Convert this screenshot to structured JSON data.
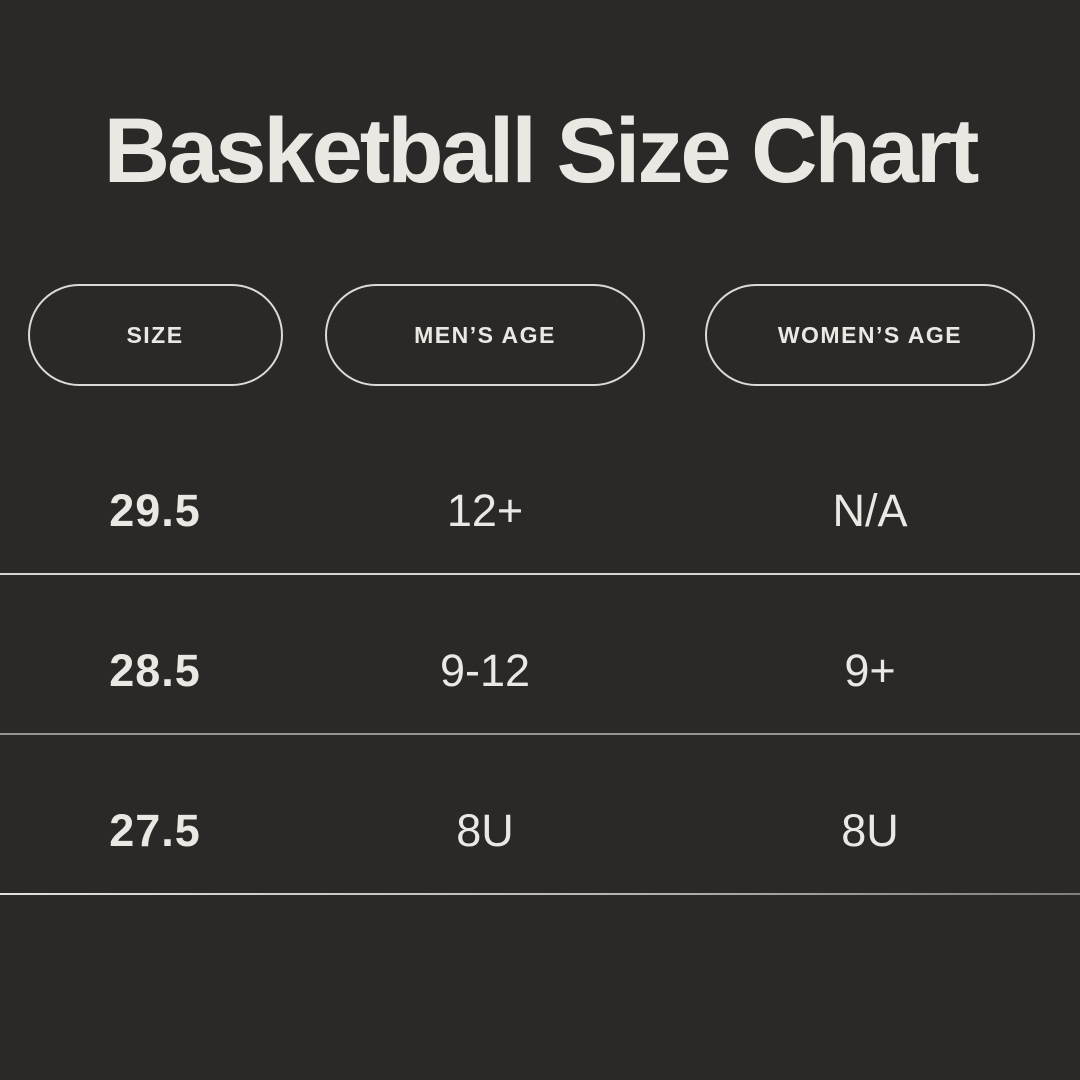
{
  "page": {
    "title": "Basketball Size Chart"
  },
  "theme": {
    "background": "#2a2928",
    "text": "#eae8e2",
    "line": "#d6d4ce",
    "pill_border": "#dcdad4"
  },
  "chart_data": {
    "type": "table",
    "title": "Basketball Size Chart",
    "columns": [
      "SIZE",
      "MEN’S AGE",
      "WOMEN’S AGE"
    ],
    "rows": [
      [
        "29.5",
        "12+",
        "N/A"
      ],
      [
        "28.5",
        "9-12",
        "9+"
      ],
      [
        "27.5",
        "8U",
        "8U"
      ]
    ]
  }
}
